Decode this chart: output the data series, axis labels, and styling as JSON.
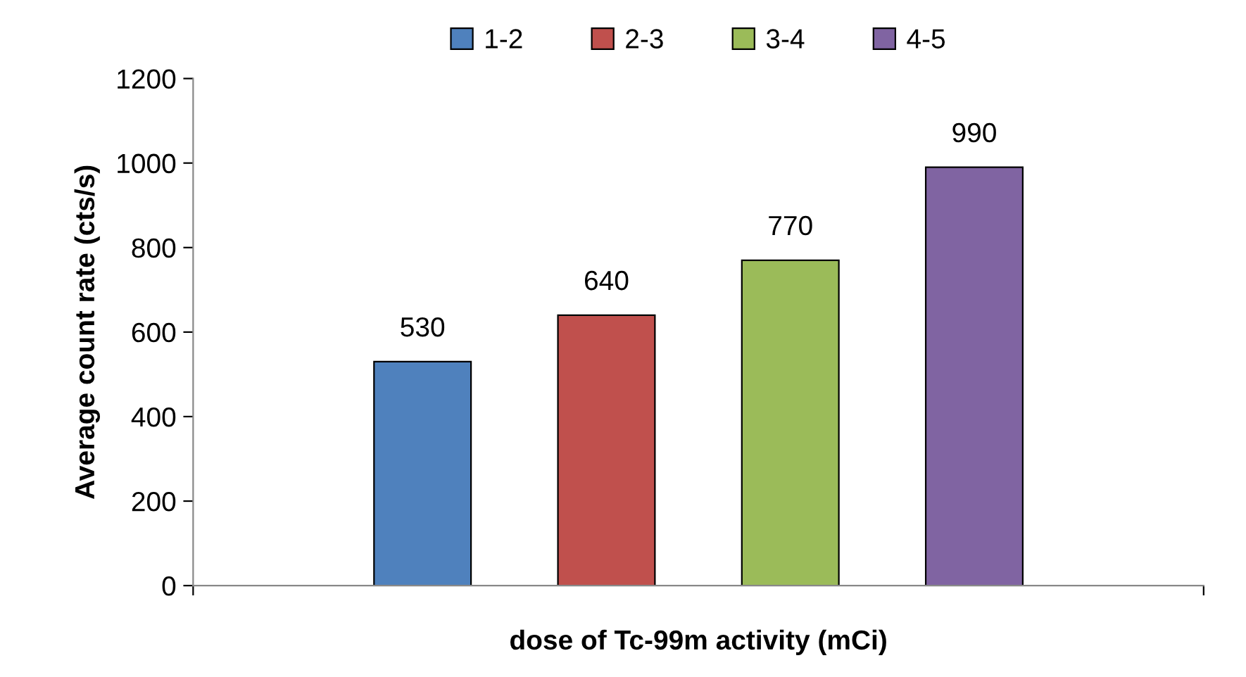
{
  "chart_data": {
    "type": "bar",
    "xlabel": "dose of Tc-99m activity (mCi)",
    "ylabel": "Average count rate (cts/s)",
    "categories": [
      null
    ],
    "series": [
      {
        "name": "1-2",
        "color": "#4f81bd",
        "values": [
          530
        ]
      },
      {
        "name": "2-3",
        "color": "#c0504d",
        "values": [
          640
        ]
      },
      {
        "name": "3-4",
        "color": "#9bbb59",
        "values": [
          770
        ]
      },
      {
        "name": "4-5",
        "color": "#8064a2",
        "values": [
          990
        ]
      }
    ],
    "ylim": [
      0,
      1200
    ],
    "yticks": [
      0,
      200,
      400,
      600,
      800,
      1000,
      1200
    ],
    "grid": false,
    "legend": "top",
    "data_labels": true
  }
}
